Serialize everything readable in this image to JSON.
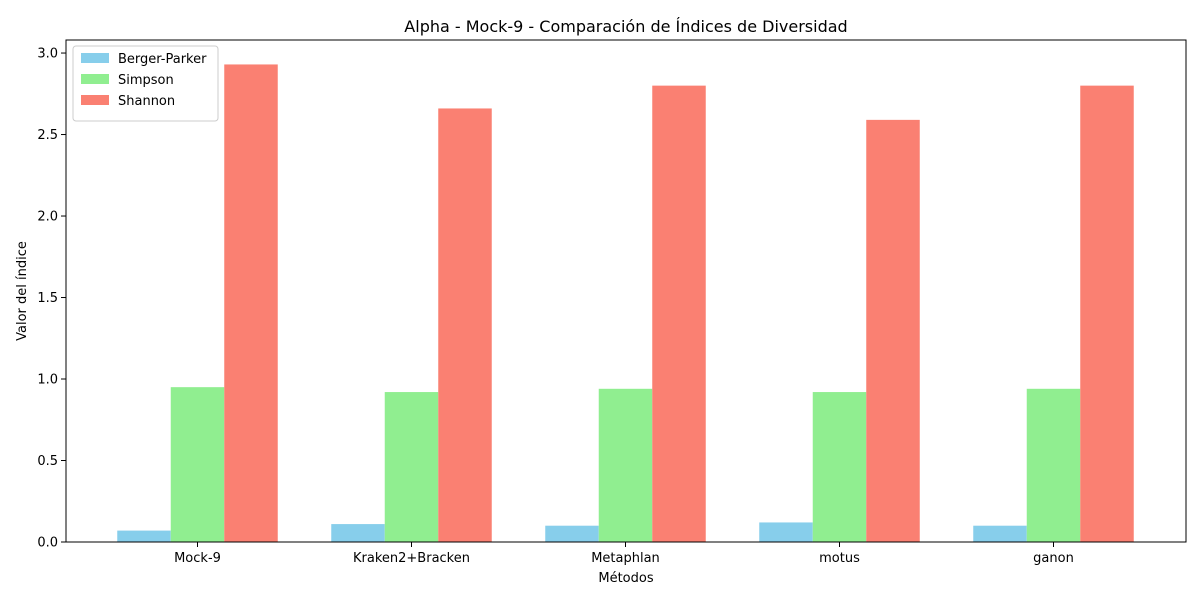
{
  "chart_data": {
    "type": "bar",
    "title": "Alpha - Mock-9 - Comparación de Índices de Diversidad",
    "xlabel": "Métodos",
    "ylabel": "Valor del índice",
    "categories": [
      "Mock-9",
      "Kraken2+Bracken",
      "Metaphlan",
      "motus",
      "ganon"
    ],
    "series": [
      {
        "name": "Berger-Parker",
        "color": "#87ceeb",
        "values": [
          0.07,
          0.11,
          0.1,
          0.12,
          0.1
        ]
      },
      {
        "name": "Simpson",
        "color": "#90ee90",
        "values": [
          0.95,
          0.92,
          0.94,
          0.92,
          0.94
        ]
      },
      {
        "name": "Shannon",
        "color": "#fa8072",
        "values": [
          2.93,
          2.66,
          2.8,
          2.59,
          2.8
        ]
      }
    ],
    "ylim": [
      0,
      3.08
    ],
    "yticks": [
      0.0,
      0.5,
      1.0,
      1.5,
      2.0,
      2.5,
      3.0
    ],
    "ytick_labels": [
      "0.0",
      "0.5",
      "1.0",
      "1.5",
      "2.0",
      "2.5",
      "3.0"
    ],
    "legend_position": "top-left",
    "grid": false
  }
}
